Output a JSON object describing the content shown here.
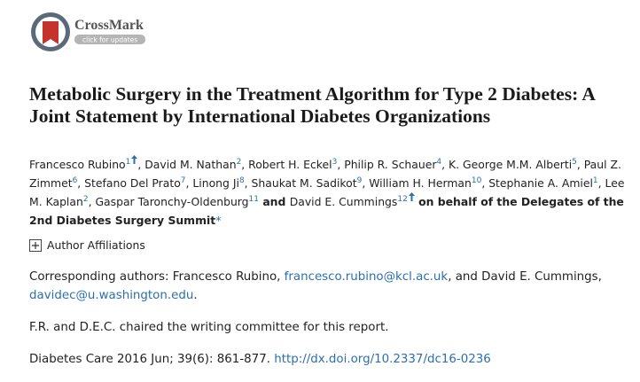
{
  "crossmark": {
    "label": "CrossMark",
    "action": "click for updates"
  },
  "title": "Metabolic Surgery in the Treatment Algorithm for Type 2 Diabetes: A Joint Statement by International Diabetes Organizations",
  "authors": [
    {
      "text": "Francesco Rubino",
      "sup": 1
    },
    {
      "text": ", David M. Nathan",
      "sup": 2
    },
    {
      "text": ", Robert H. Eckel",
      "sup": 3
    },
    {
      "text": ", Philip R. Schauer",
      "sup": 4
    },
    {
      "text": ", K. George M.M. Alberti",
      "sup": 5
    },
    {
      "text": ", Paul Z. Zimmet",
      "sup": 6
    },
    {
      "text": ", Stefano Del Prato",
      "sup": 7
    },
    {
      "text": ", Linong Ji",
      "sup": 8
    },
    {
      "text": ", Shaukat M. Sadikot",
      "sup": 9
    },
    {
      "text": ", William H. Herman",
      "sup": 10
    },
    {
      "text": ", Stephanie A. Amiel",
      "sup": 1
    },
    {
      "text": ", Lee M. Kaplan",
      "sup": 2
    },
    {
      "text": ", Gaspar Taronchy-Oldenburg",
      "sup": 11
    },
    {
      "text": " and "
    },
    {
      "text": "David E. Cummings",
      "sup": 12
    },
    {
      "text": " on behalf of the Delegates of the 2nd Diabetes Surgery Summit"
    },
    {
      "text": "*"
    }
  ],
  "affiliations_toggle": "Author Affiliations",
  "correspondence": [
    "Corresponding authors: Francesco Rubino, ",
    "francesco.rubino@kcl.ac.uk",
    ", and David E. Cummings, ",
    "davidec@u.washington.edu",
    "."
  ],
  "note": "F.R. and D.E.C. chaired the writing committee for this report.",
  "citation": {
    "text": "Diabetes Care 2016 Jun; 39(6): 861-877. ",
    "doi": "http://dx.doi.org/10.2337/dc16-0236"
  }
}
